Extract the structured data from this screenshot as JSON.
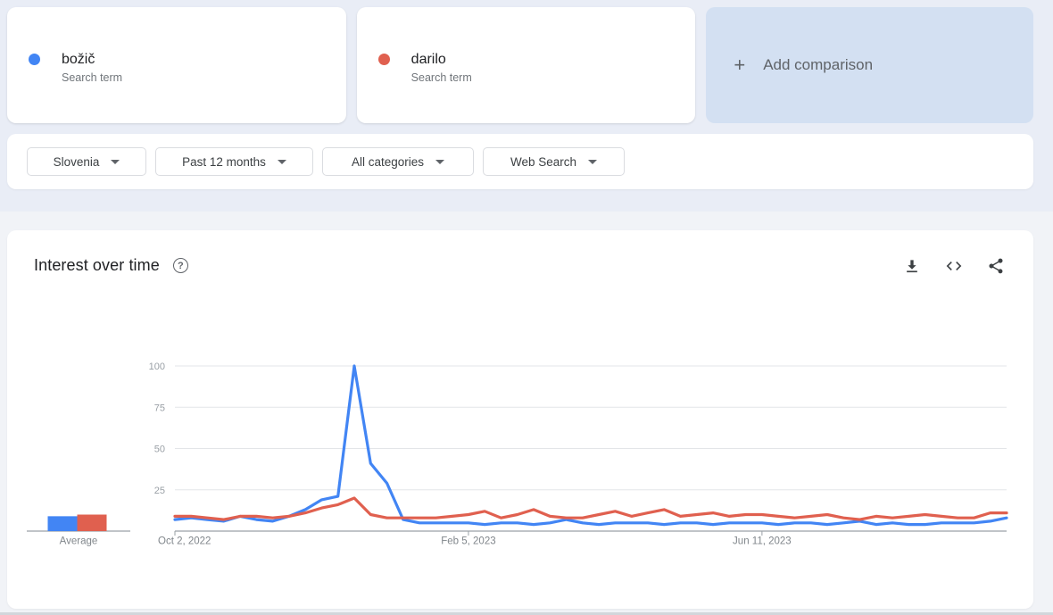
{
  "terms": [
    {
      "label": "božič",
      "type": "Search term",
      "color": "#4285f4"
    },
    {
      "label": "darilo",
      "type": "Search term",
      "color": "#e0604f"
    }
  ],
  "add_comparison": {
    "label": "Add comparison",
    "plus_glyph": "+"
  },
  "filters": [
    {
      "name": "geo",
      "label": "Slovenia"
    },
    {
      "name": "time",
      "label": "Past 12 months"
    },
    {
      "name": "category",
      "label": "All categories"
    },
    {
      "name": "property",
      "label": "Web Search"
    }
  ],
  "chart_card": {
    "title": "Interest over time",
    "help_glyph": "?",
    "icon_names": [
      "help-icon",
      "download-icon",
      "embed-icon",
      "share-icon"
    ]
  },
  "average": {
    "label": "Average",
    "values": [
      9,
      10
    ]
  },
  "colors": {
    "series_blue": "#4285f4",
    "series_red": "#e0604f",
    "grid_line": "#e3e5e8",
    "axis_line": "#9aa0a6",
    "y_tick_text": "#9aa0a6",
    "x_tick_text": "#80868b",
    "header_band_bg": "#e9edf6",
    "page_bg": "#f1f3f7",
    "add_card_bg": "#d3e0f2"
  },
  "chart_data": {
    "type": "line",
    "title": "Interest over time",
    "xlabel": "",
    "ylabel": "",
    "ylim": [
      0,
      100
    ],
    "grid": true,
    "legend_position": "none",
    "y_ticks": [
      25,
      50,
      75,
      100
    ],
    "x_tick_labels": [
      "Oct 2, 2022",
      "Feb 5, 2023",
      "Jun 11, 2023"
    ],
    "x_tick_indices": [
      0,
      18,
      36
    ],
    "x": [
      "Oct 2, 2022",
      "Oct 9, 2022",
      "Oct 16, 2022",
      "Oct 23, 2022",
      "Oct 30, 2022",
      "Nov 6, 2022",
      "Nov 13, 2022",
      "Nov 20, 2022",
      "Nov 27, 2022",
      "Dec 4, 2022",
      "Dec 11, 2022",
      "Dec 18, 2022",
      "Dec 25, 2022",
      "Jan 1, 2023",
      "Jan 8, 2023",
      "Jan 15, 2023",
      "Jan 22, 2023",
      "Jan 29, 2023",
      "Feb 5, 2023",
      "Feb 12, 2023",
      "Feb 19, 2023",
      "Feb 26, 2023",
      "Mar 5, 2023",
      "Mar 12, 2023",
      "Mar 19, 2023",
      "Mar 26, 2023",
      "Apr 2, 2023",
      "Apr 9, 2023",
      "Apr 16, 2023",
      "Apr 23, 2023",
      "Apr 30, 2023",
      "May 7, 2023",
      "May 14, 2023",
      "May 21, 2023",
      "May 28, 2023",
      "Jun 4, 2023",
      "Jun 11, 2023",
      "Jun 18, 2023",
      "Jun 25, 2023",
      "Jul 2, 2023",
      "Jul 9, 2023",
      "Jul 16, 2023",
      "Jul 23, 2023",
      "Jul 30, 2023",
      "Aug 6, 2023",
      "Aug 13, 2023",
      "Aug 20, 2023",
      "Aug 27, 2023",
      "Sep 3, 2023",
      "Sep 10, 2023",
      "Sep 17, 2023",
      "Sep 24, 2023"
    ],
    "series": [
      {
        "name": "božič",
        "color": "#4285f4",
        "average": 9,
        "values": [
          7,
          8,
          7,
          6,
          9,
          7,
          6,
          9,
          13,
          19,
          21,
          100,
          41,
          29,
          7,
          5,
          5,
          5,
          5,
          4,
          5,
          5,
          4,
          5,
          7,
          5,
          4,
          5,
          5,
          5,
          4,
          5,
          5,
          4,
          5,
          5,
          5,
          4,
          5,
          5,
          4,
          5,
          6,
          4,
          5,
          4,
          4,
          5,
          5,
          5,
          6,
          8
        ]
      },
      {
        "name": "darilo",
        "color": "#e0604f",
        "average": 10,
        "values": [
          9,
          9,
          8,
          7,
          9,
          9,
          8,
          9,
          11,
          14,
          16,
          20,
          10,
          8,
          8,
          8,
          8,
          9,
          10,
          12,
          8,
          10,
          13,
          9,
          8,
          8,
          10,
          12,
          9,
          11,
          13,
          9,
          10,
          11,
          9,
          10,
          10,
          9,
          8,
          9,
          10,
          8,
          7,
          9,
          8,
          9,
          10,
          9,
          8,
          8,
          11,
          11
        ]
      }
    ]
  }
}
